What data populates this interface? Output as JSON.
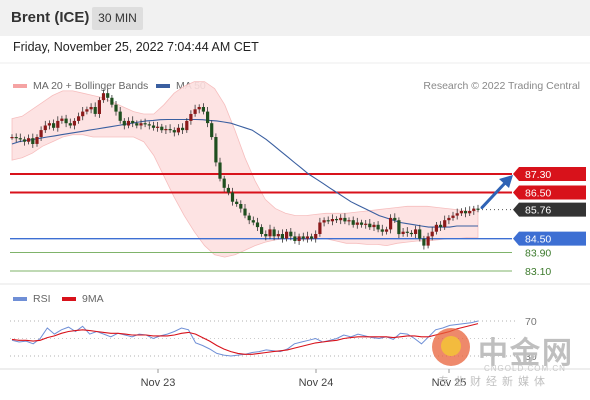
{
  "header": {
    "instrument": "Brent (ICE)",
    "timeframe": "30 MIN"
  },
  "datetime": "Friday, November 25, 2022 7:04:44 AM CET",
  "credit": "Research © 2022 Trading Central",
  "colors": {
    "bollinger": "#f08a8a",
    "ma50": "#3a5fa0",
    "resistance": "#d8121b",
    "support_blue": "#3d6fd3",
    "support_green": "#7fb36a",
    "last_price": "#333333",
    "rsi": "#6f8fd6",
    "rsi_ma": "#d8121b",
    "up_candle": "#8b1a1a",
    "arrow": "#2f63b5"
  },
  "legend": {
    "bollinger": "MA 20 + Bollinger Bands",
    "ma50": "MA 50",
    "rsi": "RSI",
    "rsi_ma": "9MA"
  },
  "levels": [
    {
      "label": "87.30",
      "value": 87.3,
      "kind": "resistance"
    },
    {
      "label": "86.50",
      "value": 86.5,
      "kind": "resistance"
    },
    {
      "label": "85.76",
      "value": 85.76,
      "kind": "last"
    },
    {
      "label": "84.50",
      "value": 84.5,
      "kind": "support_blue"
    },
    {
      "label": "83.90",
      "value": 83.9,
      "kind": "support_green"
    },
    {
      "label": "83.10",
      "value": 83.1,
      "kind": "support_green"
    }
  ],
  "rsi_levels": [
    {
      "label": "70",
      "value": 70
    },
    {
      "label": "30",
      "value": 30
    }
  ],
  "x_labels": [
    "Nov 23",
    "Nov 24",
    "Nov 25"
  ],
  "watermark": {
    "name": "中金网",
    "url": "CNGOLD.COM.CN",
    "slogan": "专业财经新媒体"
  },
  "chart_data": {
    "type": "candlestick",
    "price_closes": [
      88.9,
      88.85,
      88.8,
      88.7,
      88.85,
      88.6,
      88.9,
      89.2,
      89.4,
      89.5,
      89.3,
      89.6,
      89.7,
      89.5,
      89.4,
      89.6,
      89.8,
      90.0,
      90.1,
      90.2,
      89.9,
      90.5,
      90.8,
      90.6,
      90.3,
      90.0,
      89.6,
      89.4,
      89.6,
      89.5,
      89.4,
      89.5,
      89.45,
      89.4,
      89.3,
      89.35,
      89.2,
      89.25,
      89.2,
      89.1,
      89.3,
      89.2,
      89.6,
      89.9,
      90.1,
      90.2,
      90.0,
      89.5,
      88.9,
      87.8,
      87.1,
      86.7,
      86.5,
      86.1,
      86.0,
      85.8,
      85.5,
      85.3,
      85.2,
      85.0,
      84.7,
      84.6,
      84.9,
      84.6,
      84.7,
      84.5,
      84.8,
      84.6,
      84.4,
      84.6,
      84.5,
      84.6,
      84.5,
      84.7,
      85.2,
      85.3,
      85.25,
      85.35,
      85.3,
      85.4,
      85.25,
      85.3,
      85.1,
      85.2,
      85.1,
      85.15,
      85.0,
      85.1,
      84.9,
      84.8,
      84.9,
      85.4,
      85.3,
      84.7,
      84.8,
      84.75,
      84.7,
      84.9,
      84.5,
      84.2,
      84.6,
      84.8,
      85.1,
      85.0,
      85.3,
      85.4,
      85.5,
      85.6,
      85.7,
      85.6,
      85.7,
      85.8,
      85.76
    ],
    "ma50": [
      88.6,
      88.7,
      88.75,
      88.8,
      88.85,
      88.9,
      88.95,
      89.0,
      89.05,
      89.1,
      89.15,
      89.2,
      89.25,
      89.3,
      89.35,
      89.4,
      89.45,
      89.5,
      89.55,
      89.6,
      89.62,
      89.65,
      89.66,
      89.66,
      89.66,
      89.66,
      89.66,
      89.65,
      89.62,
      89.6,
      89.55,
      89.5,
      89.4,
      89.3,
      89.2,
      89.0,
      88.8,
      88.55,
      88.3,
      88.05,
      87.8,
      87.55,
      87.3,
      87.1,
      86.9,
      86.7,
      86.5,
      86.3,
      86.1,
      85.95,
      85.8,
      85.65,
      85.5,
      85.4,
      85.3,
      85.2,
      85.15,
      85.1,
      85.05,
      85.0,
      85.0,
      85.0,
      85.0,
      85.05,
      85.05,
      85.05,
      85.05
    ],
    "bb_upper": [
      89.7,
      89.8,
      90.1,
      90.4,
      90.7,
      90.9,
      90.9,
      90.8,
      90.7,
      90.6,
      90.4,
      90.2,
      90.0,
      89.9,
      89.9,
      90.3,
      90.8,
      91.1,
      91.3,
      91.3,
      91.0,
      90.3,
      89.2,
      88.0,
      87.0,
      86.2,
      85.8,
      85.6,
      85.5,
      85.5,
      85.55,
      85.6,
      85.6,
      85.6,
      85.65,
      85.7,
      85.75,
      85.8,
      85.85,
      85.9,
      85.9,
      85.9,
      85.85,
      85.8,
      85.75,
      85.7,
      85.7
    ],
    "bb_lower": [
      87.9,
      88.0,
      88.2,
      88.5,
      88.7,
      88.9,
      89.0,
      89.0,
      88.9,
      88.9,
      88.9,
      88.9,
      88.9,
      88.7,
      88.1,
      87.2,
      86.3,
      85.5,
      84.8,
      84.2,
      83.8,
      83.7,
      83.8,
      84.0,
      84.2,
      84.35,
      84.45,
      84.5,
      84.5,
      84.45,
      84.5,
      84.5,
      84.4,
      84.3,
      84.3,
      84.25,
      84.25,
      84.2,
      84.3,
      84.35,
      84.4,
      84.4,
      84.45,
      84.5,
      84.5,
      84.55,
      84.55
    ],
    "rsi": [
      48,
      46,
      47,
      44,
      50,
      62,
      55,
      60,
      63,
      58,
      64,
      55,
      58,
      55,
      52,
      56,
      54,
      52,
      55,
      54,
      50,
      53,
      55,
      58,
      62,
      60,
      45,
      42,
      38,
      33,
      31,
      30,
      31,
      32,
      34,
      35,
      37,
      36,
      35,
      38,
      44,
      46,
      48,
      50,
      46,
      48,
      50,
      54,
      52,
      55,
      53,
      51,
      50,
      52,
      49,
      56,
      55,
      50,
      44,
      52,
      60,
      62,
      65,
      66,
      67,
      68,
      70
    ],
    "rsi_ma": [
      49,
      48,
      48,
      47,
      48,
      51,
      53,
      56,
      58,
      59,
      60,
      59,
      58,
      57,
      56,
      56,
      55,
      54,
      54,
      54,
      53,
      53,
      53,
      54,
      56,
      57,
      55,
      51,
      47,
      42,
      38,
      35,
      33,
      32,
      32,
      33,
      34,
      35,
      36,
      37,
      39,
      41,
      43,
      45,
      46,
      47,
      48,
      50,
      51,
      52,
      52,
      52,
      52,
      52,
      51,
      52,
      53,
      53,
      52,
      52,
      54,
      56,
      58,
      61,
      63,
      65,
      67
    ],
    "target_arrow_to": 87.3
  }
}
